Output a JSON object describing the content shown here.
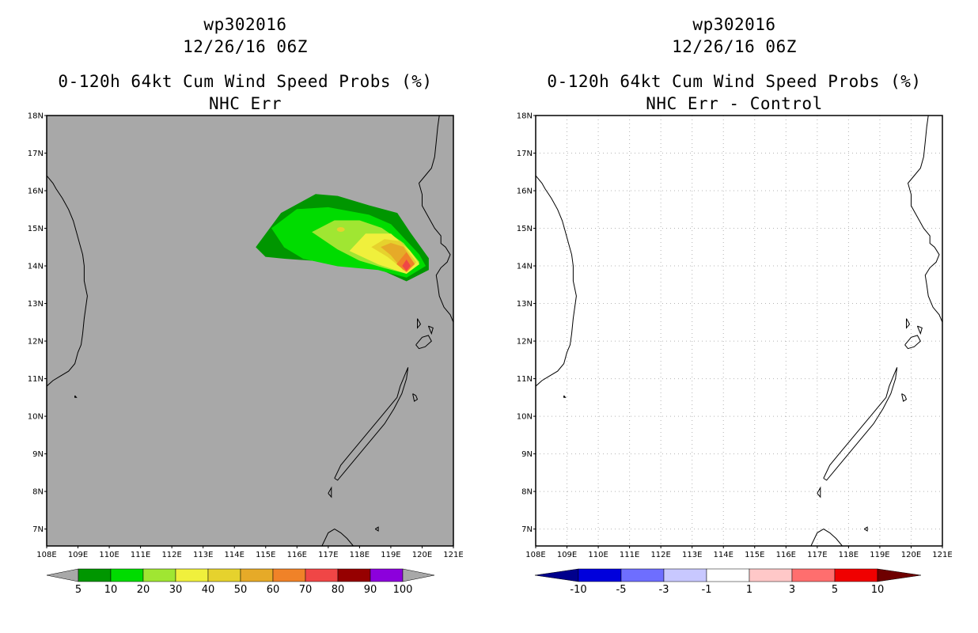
{
  "panels": [
    {
      "id": "left",
      "storm": "wp302016",
      "datetime": "12/26/16 06Z",
      "product": "0-120h 64kt Cum Wind Speed Probs (%)",
      "subtitle": "NHC Err",
      "background_color": "#a8a8a8",
      "colorbar": {
        "labels": [
          "5",
          "10",
          "20",
          "30",
          "40",
          "50",
          "60",
          "70",
          "80",
          "90",
          "100"
        ],
        "colors": [
          "#009600",
          "#00dc00",
          "#a0e632",
          "#f0f03c",
          "#e6d22d",
          "#e6aa28",
          "#f08228",
          "#f04646",
          "#960000",
          "#8c00dc"
        ],
        "extend_color": "#a8a8a8"
      }
    },
    {
      "id": "right",
      "storm": "wp302016",
      "datetime": "12/26/16 06Z",
      "product": "0-120h 64kt Cum Wind Speed Probs (%)",
      "subtitle": "NHC Err - Control",
      "background_color": "#ffffff",
      "colorbar": {
        "labels": [
          "-10",
          "-5",
          "-3",
          "-1",
          "1",
          "3",
          "5",
          "10"
        ],
        "colors": [
          "#0000dc",
          "#6e6eff",
          "#c8c8ff",
          "#ffffff",
          "#ffc8c8",
          "#ff6e6e",
          "#f00000"
        ],
        "extend_low_color": "#00008c",
        "extend_high_color": "#6e0000"
      }
    }
  ],
  "axes": {
    "lon_labels": [
      "108E",
      "109E",
      "110E",
      "111E",
      "112E",
      "113E",
      "114E",
      "115E",
      "116E",
      "117E",
      "118E",
      "119E",
      "120E",
      "121E"
    ],
    "lat_labels": [
      "7N",
      "8N",
      "9N",
      "10N",
      "11N",
      "12N",
      "13N",
      "14N",
      "15N",
      "16N",
      "17N",
      "18N"
    ],
    "lon_range": [
      108,
      121
    ],
    "lat_range": [
      6.55,
      18
    ],
    "gridlines_right_panel": true
  },
  "probability_field": {
    "description_levels": [
      {
        "level": "5",
        "color": "#009600",
        "outline": [
          [
            114.7,
            14.5
          ],
          [
            115.5,
            15.4
          ],
          [
            116.6,
            15.9
          ],
          [
            117.3,
            15.85
          ],
          [
            118.3,
            15.6
          ],
          [
            119.2,
            15.4
          ],
          [
            119.6,
            14.9
          ],
          [
            120.2,
            14.2
          ],
          [
            120.2,
            13.9
          ],
          [
            119.5,
            13.6
          ],
          [
            118.7,
            13.9
          ],
          [
            117.3,
            14.1
          ],
          [
            115.6,
            14.2
          ],
          [
            115.0,
            14.25
          ]
        ]
      },
      {
        "level": "10",
        "color": "#00dc00",
        "outline": [
          [
            115.2,
            15.0
          ],
          [
            116.0,
            15.5
          ],
          [
            117.0,
            15.55
          ],
          [
            118.3,
            15.35
          ],
          [
            119.0,
            15.1
          ],
          [
            119.9,
            14.3
          ],
          [
            120.1,
            14.0
          ],
          [
            119.5,
            13.7
          ],
          [
            118.6,
            13.9
          ],
          [
            117.3,
            14.0
          ],
          [
            116.2,
            14.2
          ],
          [
            115.6,
            14.5
          ]
        ]
      },
      {
        "level": "20",
        "color": "#a0e632",
        "outline": [
          [
            116.5,
            14.9
          ],
          [
            117.2,
            15.2
          ],
          [
            118.0,
            15.2
          ],
          [
            118.7,
            15.0
          ],
          [
            119.4,
            14.6
          ],
          [
            119.9,
            14.1
          ],
          [
            119.5,
            13.8
          ],
          [
            118.8,
            13.95
          ],
          [
            118.0,
            14.15
          ],
          [
            117.3,
            14.45
          ]
        ]
      },
      {
        "level": "30",
        "color": "#f0f03c",
        "outline": [
          [
            117.7,
            14.4
          ],
          [
            118.2,
            14.85
          ],
          [
            119.0,
            14.85
          ],
          [
            119.6,
            14.4
          ],
          [
            119.9,
            14.05
          ],
          [
            119.5,
            13.8
          ],
          [
            118.6,
            14.05
          ]
        ]
      },
      {
        "level": "40",
        "color": "#e6d22d",
        "outline": [
          [
            118.4,
            14.5
          ],
          [
            118.8,
            14.7
          ],
          [
            119.3,
            14.65
          ],
          [
            119.8,
            14.1
          ],
          [
            119.5,
            13.85
          ],
          [
            118.9,
            14.25
          ]
        ]
      },
      {
        "level": "50",
        "color": "#e6aa28",
        "outline": [
          [
            118.7,
            14.5
          ],
          [
            119.0,
            14.6
          ],
          [
            119.4,
            14.5
          ],
          [
            119.7,
            14.1
          ],
          [
            119.4,
            13.9
          ],
          [
            119.0,
            14.3
          ]
        ]
      },
      {
        "level": "60",
        "color": "#f08228",
        "outline": [
          [
            119.2,
            14.05
          ],
          [
            119.5,
            14.35
          ],
          [
            119.75,
            14.05
          ],
          [
            119.5,
            13.85
          ]
        ]
      },
      {
        "level": "70",
        "color": "#f04646",
        "outline": [
          [
            119.38,
            14.0
          ],
          [
            119.5,
            14.15
          ],
          [
            119.62,
            14.0
          ],
          [
            119.5,
            13.88
          ]
        ]
      }
    ],
    "secondary_peak": {
      "level": "40",
      "color": "#e6d22d",
      "center": [
        117.4,
        14.97
      ]
    }
  }
}
